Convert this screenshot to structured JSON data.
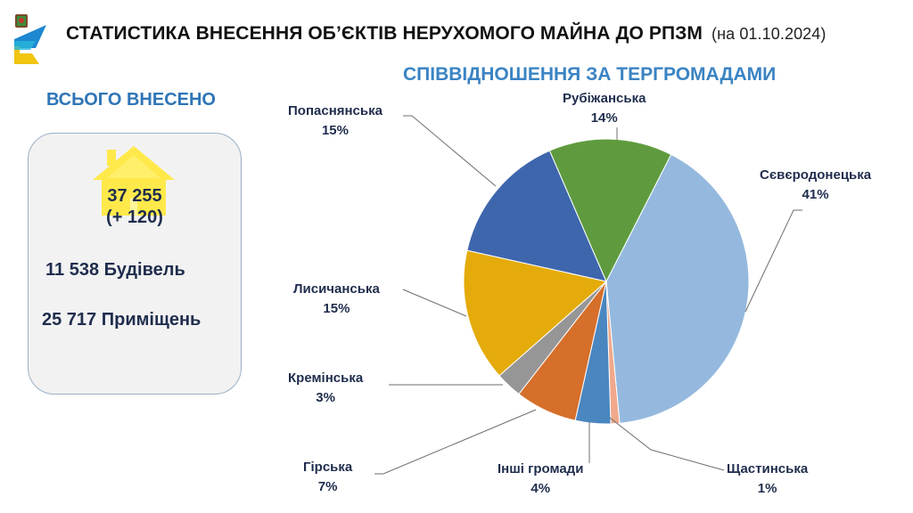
{
  "header": {
    "title": "СТАТИСТИКА ВНЕСЕННЯ ОБ’ЄКТІВ НЕРУХОМОГО МАЙНА ДО РПЗМ",
    "date": "(на 01.10.2024)"
  },
  "summary": {
    "heading": "ВСЬОГО ВНЕСЕНО",
    "total": "37 255",
    "delta": "(+ 120)",
    "buildings": "11 538  Будівель",
    "premises": "25 717  Приміщень",
    "house_color": "#ffe94a"
  },
  "chart_title": "СПІВВІДНОШЕННЯ ЗА ТЕРГРОМАДАМИ",
  "chart_data": {
    "type": "pie",
    "title": "СПІВВІДНОШЕННЯ ЗА ТЕРГРОМАДАМИ",
    "categories": [
      "Сєвєродонецька",
      "Щастинська",
      "Інші громади",
      "Гірська",
      "Кремінська",
      "Лисичанська",
      "Попаснянська",
      "Рубіжанська"
    ],
    "values": [
      41,
      1,
      4,
      7,
      3,
      15,
      15,
      14
    ],
    "unit": "%",
    "colors": [
      "#95b9de",
      "#f0a98c",
      "#4a86c0",
      "#d56f2a",
      "#969696",
      "#e4ab0a",
      "#3e66ad",
      "#5f9b3e"
    ],
    "labels": [
      {
        "name": "Сєвєродонецька",
        "pct": "41%"
      },
      {
        "name": "Щастинська",
        "pct": "1%"
      },
      {
        "name": "Інші громади",
        "pct": "4%"
      },
      {
        "name": "Гірська",
        "pct": "7%"
      },
      {
        "name": "Кремінська",
        "pct": "3%"
      },
      {
        "name": "Лисичанська",
        "pct": "15%"
      },
      {
        "name": "Попаснянська",
        "pct": "15%"
      },
      {
        "name": "Рубіжанська",
        "pct": "14%"
      }
    ],
    "legend": "none",
    "start_angle_deg": 27
  }
}
